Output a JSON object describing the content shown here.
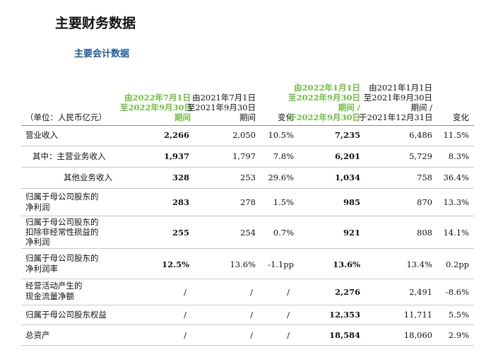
{
  "page": {
    "title": "主要财务数据",
    "subtitle": "主要会计数据"
  },
  "header": {
    "unit": "（单位：人民币亿元）",
    "col1": [
      "由2022年7月1日",
      "至2022年9月30日",
      "期间"
    ],
    "col2": [
      "由2021年7月1日",
      "至2021年9月30日",
      "期间"
    ],
    "col3": "变化",
    "col4": [
      "由2022年1月1日",
      "至2022年9月30日",
      "期间 /",
      "于2022年9月30日"
    ],
    "col5": [
      "由2021年1月1日",
      "至2021年9月30日",
      "期间 /",
      "于2021年12月31日"
    ],
    "col6": "变化"
  },
  "rows": [
    {
      "label": [
        "营业收入"
      ],
      "v": [
        "2,266",
        "2,050",
        "10.5%",
        "7,235",
        "6,486",
        "11.5%"
      ]
    },
    {
      "label": [
        "其中：主营业务收入"
      ],
      "v": [
        "1,937",
        "1,797",
        "7.8%",
        "6,201",
        "5,729",
        "8.3%"
      ]
    },
    {
      "label": [
        "其他业务收入"
      ],
      "v": [
        "328",
        "253",
        "29.6%",
        "1,034",
        "758",
        "36.4%"
      ]
    },
    {
      "label": [
        "归属于母公司股东的",
        "净利润"
      ],
      "v": [
        "283",
        "278",
        "1.5%",
        "985",
        "870",
        "13.3%"
      ]
    },
    {
      "label": [
        "归属于母公司股东的",
        "扣除非经常性损益的",
        "净利润"
      ],
      "v": [
        "255",
        "254",
        "0.7%",
        "921",
        "808",
        "14.1%"
      ]
    },
    {
      "label": [
        "归属于母公司股东的",
        "净利润率"
      ],
      "v": [
        "12.5%",
        "13.6%",
        "-1.1pp",
        "13.6%",
        "13.4%",
        "0.2pp"
      ]
    },
    {
      "label": [
        "经营活动产生的",
        "现金流量净额"
      ],
      "v": [
        "/",
        "/",
        "/",
        "2,276",
        "2,491",
        "-8.6%"
      ]
    },
    {
      "label": [
        "归属于母公司股东权益"
      ],
      "v": [
        "/",
        "/",
        "/",
        "12,353",
        "11,711",
        "5.5%"
      ]
    },
    {
      "label": [
        "总资产"
      ],
      "v": [
        "/",
        "/",
        "/",
        "18,584",
        "18,060",
        "2.9%"
      ]
    }
  ]
}
